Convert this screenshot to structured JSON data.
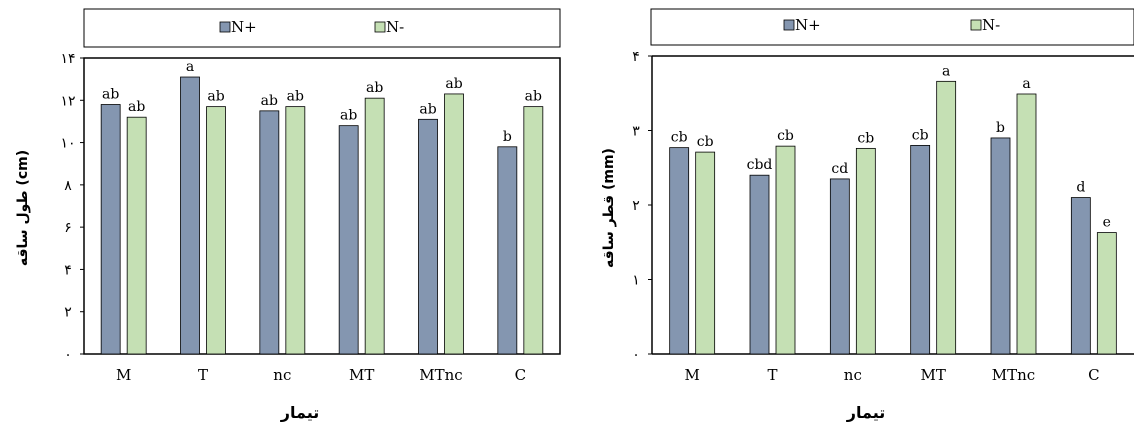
{
  "chart_data": [
    {
      "type": "bar",
      "categories": [
        "M",
        "T",
        "nc",
        "MT",
        "MTnc",
        "C"
      ],
      "series": [
        {
          "name": "N+",
          "values": [
            11.8,
            13.1,
            11.5,
            10.8,
            11.1,
            9.8
          ],
          "letters": [
            "ab",
            "a",
            "ab",
            "ab",
            "ab",
            "b"
          ]
        },
        {
          "name": "N-",
          "values": [
            11.2,
            11.7,
            11.7,
            12.1,
            12.3,
            11.7
          ],
          "letters": [
            "ab",
            "ab",
            "ab",
            "ab",
            "ab",
            "ab"
          ]
        }
      ],
      "ylim": [
        0,
        14
      ],
      "yticks": [
        "۰",
        "۲",
        "۴",
        "۶",
        "۸",
        "۱۰",
        "۱۲",
        "۱۴"
      ],
      "ylabel": "طول ساقه (cm)",
      "xlabel": "تیمار",
      "legend": "top"
    },
    {
      "type": "bar",
      "categories": [
        "M",
        "T",
        "nc",
        "MT",
        "MTnc",
        "C"
      ],
      "series": [
        {
          "name": "N+",
          "values": [
            2.77,
            2.4,
            2.35,
            2.8,
            2.9,
            2.1
          ],
          "letters": [
            "cb",
            "cbd",
            "cd",
            "cb",
            "b",
            "d"
          ]
        },
        {
          "name": "N-",
          "values": [
            2.71,
            2.79,
            2.76,
            3.66,
            3.49,
            1.63
          ],
          "letters": [
            "cb",
            "cb",
            "cb",
            "a",
            "a",
            "e"
          ]
        }
      ],
      "ylim": [
        0,
        4
      ],
      "yticks": [
        "۰",
        "۱",
        "۲",
        "۳",
        "۴"
      ],
      "ylabel": "قطر ساقه (mm)",
      "xlabel": "تیمار",
      "legend": "top"
    }
  ],
  "colors": {
    "n_plus": "#8496B0",
    "n_minus": "#C5E0B4",
    "stroke": "#000000"
  }
}
